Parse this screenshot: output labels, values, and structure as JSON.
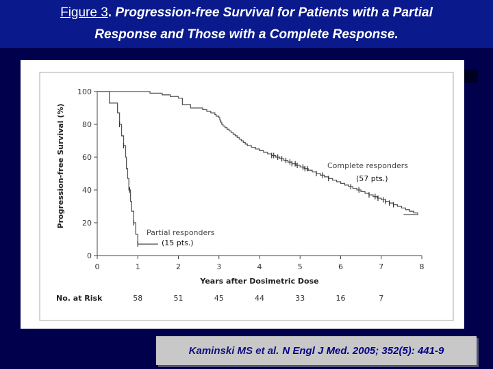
{
  "title": {
    "prefix": "Figure 3",
    "line1_rest": "Progression-free Survival for Patients with a Partial",
    "line2": "Response and Those with a Complete Response."
  },
  "citation": {
    "authors": "Kaminski MS et al.",
    "journal": "N Engl J Med. 2005; 352(5): 441-9"
  },
  "chart_data": {
    "type": "line",
    "subtype": "kaplan-meier",
    "xlabel": "Years after Dosimetric Dose",
    "ylabel": "Progression-free Survival (%)",
    "xlim": [
      0,
      8
    ],
    "ylim": [
      0,
      100
    ],
    "xticks": [
      "0",
      "1",
      "2",
      "3",
      "4",
      "5",
      "6",
      "7",
      "8"
    ],
    "yticks": [
      "0",
      "20",
      "40",
      "60",
      "80",
      "100"
    ],
    "series": [
      {
        "name": "Complete responders",
        "count_label": "(57 pts.)",
        "steps": [
          [
            0,
            100
          ],
          [
            1.3,
            99
          ],
          [
            1.6,
            98
          ],
          [
            1.8,
            97
          ],
          [
            2.0,
            96
          ],
          [
            2.1,
            92
          ],
          [
            2.3,
            90
          ],
          [
            2.6,
            89
          ],
          [
            2.7,
            88
          ],
          [
            2.8,
            87
          ],
          [
            2.9,
            86
          ],
          [
            2.93,
            85
          ],
          [
            3.0,
            84
          ],
          [
            3.02,
            83
          ],
          [
            3.03,
            82
          ],
          [
            3.05,
            81
          ],
          [
            3.07,
            80
          ],
          [
            3.1,
            79
          ],
          [
            3.15,
            78
          ],
          [
            3.2,
            77
          ],
          [
            3.25,
            76
          ],
          [
            3.3,
            75
          ],
          [
            3.35,
            74
          ],
          [
            3.4,
            73
          ],
          [
            3.45,
            72
          ],
          [
            3.5,
            71
          ],
          [
            3.55,
            70
          ],
          [
            3.6,
            69
          ],
          [
            3.65,
            68
          ],
          [
            3.7,
            67
          ],
          [
            3.8,
            66
          ],
          [
            3.9,
            65
          ],
          [
            4.0,
            64
          ],
          [
            4.1,
            63
          ],
          [
            4.2,
            62
          ],
          [
            4.3,
            61
          ],
          [
            4.4,
            60
          ],
          [
            4.5,
            59
          ],
          [
            4.6,
            58
          ],
          [
            4.7,
            57
          ],
          [
            4.8,
            56
          ],
          [
            4.9,
            55
          ],
          [
            5.0,
            54
          ],
          [
            5.1,
            53
          ],
          [
            5.2,
            52
          ],
          [
            5.3,
            51
          ],
          [
            5.4,
            50
          ],
          [
            5.5,
            49
          ],
          [
            5.6,
            48
          ],
          [
            5.7,
            47
          ],
          [
            5.8,
            46
          ],
          [
            5.9,
            45
          ],
          [
            6.0,
            44
          ],
          [
            6.1,
            43
          ],
          [
            6.2,
            42
          ],
          [
            6.3,
            41
          ],
          [
            6.4,
            40
          ],
          [
            6.5,
            39
          ],
          [
            6.6,
            38
          ],
          [
            6.7,
            37
          ],
          [
            6.8,
            36
          ],
          [
            6.9,
            35
          ],
          [
            7.0,
            34
          ],
          [
            7.1,
            33
          ],
          [
            7.2,
            32
          ],
          [
            7.3,
            31
          ],
          [
            7.4,
            30
          ],
          [
            7.5,
            29
          ],
          [
            7.6,
            28
          ],
          [
            7.7,
            27
          ],
          [
            7.8,
            26
          ],
          [
            7.9,
            25
          ]
        ],
        "censored": [
          4.3,
          4.35,
          4.45,
          4.55,
          4.65,
          4.75,
          4.8,
          4.88,
          4.93,
          5.07,
          5.12,
          5.18,
          5.4,
          5.55,
          5.7,
          6.25,
          6.45,
          6.7,
          6.85,
          6.92,
          7.05,
          7.1,
          7.2,
          7.3
        ],
        "end_x": 7.55
      },
      {
        "name": "Partial responders",
        "count_label": "(15 pts.)",
        "steps": [
          [
            0,
            100
          ],
          [
            0.3,
            93
          ],
          [
            0.5,
            87
          ],
          [
            0.55,
            80
          ],
          [
            0.6,
            73
          ],
          [
            0.65,
            67
          ],
          [
            0.7,
            60
          ],
          [
            0.72,
            53
          ],
          [
            0.75,
            47
          ],
          [
            0.78,
            40
          ],
          [
            0.82,
            33
          ],
          [
            0.85,
            27
          ],
          [
            0.9,
            20
          ],
          [
            0.95,
            13
          ],
          [
            1.0,
            7
          ]
        ],
        "censored": [
          0.55,
          0.65,
          0.8,
          0.9,
          1.0
        ],
        "end_x": 1.5
      }
    ],
    "at_risk": {
      "label": "No. at Risk",
      "x": [
        1,
        2,
        3,
        4,
        5,
        6,
        7
      ],
      "values": [
        "58",
        "51",
        "45",
        "44",
        "33",
        "16",
        "7"
      ]
    }
  }
}
